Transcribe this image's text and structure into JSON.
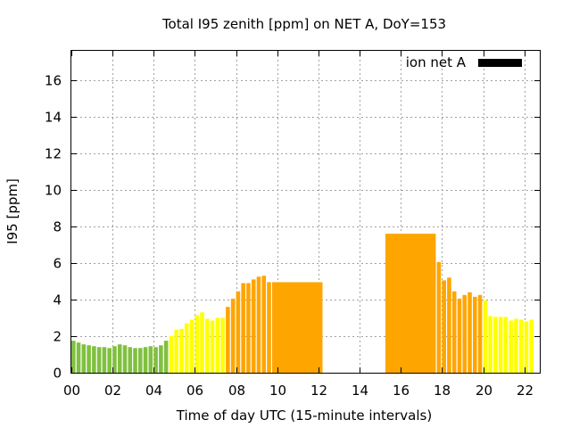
{
  "chart_data": {
    "type": "bar",
    "title": "Total I95 zenith [ppm] on NET A, DoY=153",
    "xlabel": "Time of day UTC (15-minute intervals)",
    "ylabel": "I95 [ppm]",
    "xlim": [
      0,
      22.75
    ],
    "ylim": [
      0,
      17.6
    ],
    "x_ticks": [
      0,
      2,
      4,
      6,
      8,
      10,
      12,
      14,
      16,
      18,
      20,
      22
    ],
    "x_tick_labels": [
      "00",
      "02",
      "04",
      "06",
      "08",
      "10",
      "12",
      "14",
      "16",
      "18",
      "20",
      "22"
    ],
    "y_ticks": [
      0,
      2,
      4,
      6,
      8,
      10,
      12,
      14,
      16
    ],
    "y_tick_labels": [
      "0",
      "2",
      "4",
      "6",
      "8",
      "10",
      "12",
      "14",
      "16"
    ],
    "grid": true,
    "legend": {
      "position": "top-right",
      "entries": [
        {
          "label": "ion net A",
          "color": "#000000"
        }
      ]
    },
    "colors": {
      "green": "#80c040",
      "yellow": "#ffff00",
      "orange": "#ffa500"
    },
    "series": [
      {
        "bars": [
          {
            "x": 0.0,
            "v": 1.75,
            "c": "green"
          },
          {
            "x": 0.25,
            "v": 1.65,
            "c": "green"
          },
          {
            "x": 0.5,
            "v": 1.55,
            "c": "green"
          },
          {
            "x": 0.75,
            "v": 1.5,
            "c": "green"
          },
          {
            "x": 1.0,
            "v": 1.45,
            "c": "green"
          },
          {
            "x": 1.25,
            "v": 1.4,
            "c": "green"
          },
          {
            "x": 1.5,
            "v": 1.4,
            "c": "green"
          },
          {
            "x": 1.75,
            "v": 1.35,
            "c": "green"
          },
          {
            "x": 2.0,
            "v": 1.45,
            "c": "green"
          },
          {
            "x": 2.25,
            "v": 1.55,
            "c": "green"
          },
          {
            "x": 2.5,
            "v": 1.5,
            "c": "green"
          },
          {
            "x": 2.75,
            "v": 1.4,
            "c": "green"
          },
          {
            "x": 3.0,
            "v": 1.35,
            "c": "green"
          },
          {
            "x": 3.25,
            "v": 1.35,
            "c": "green"
          },
          {
            "x": 3.5,
            "v": 1.4,
            "c": "green"
          },
          {
            "x": 3.75,
            "v": 1.45,
            "c": "green"
          },
          {
            "x": 4.0,
            "v": 1.4,
            "c": "green"
          },
          {
            "x": 4.25,
            "v": 1.5,
            "c": "green"
          },
          {
            "x": 4.5,
            "v": 1.75,
            "c": "green"
          },
          {
            "x": 4.75,
            "v": 2.0,
            "c": "yellow"
          },
          {
            "x": 5.0,
            "v": 2.35,
            "c": "yellow"
          },
          {
            "x": 5.25,
            "v": 2.4,
            "c": "yellow"
          },
          {
            "x": 5.5,
            "v": 2.7,
            "c": "yellow"
          },
          {
            "x": 5.75,
            "v": 2.9,
            "c": "yellow"
          },
          {
            "x": 6.0,
            "v": 3.15,
            "c": "yellow"
          },
          {
            "x": 6.25,
            "v": 3.3,
            "c": "yellow"
          },
          {
            "x": 6.5,
            "v": 2.95,
            "c": "yellow"
          },
          {
            "x": 6.75,
            "v": 2.85,
            "c": "yellow"
          },
          {
            "x": 7.0,
            "v": 3.0,
            "c": "yellow"
          },
          {
            "x": 7.25,
            "v": 3.0,
            "c": "yellow"
          },
          {
            "x": 7.5,
            "v": 3.6,
            "c": "orange"
          },
          {
            "x": 7.75,
            "v": 4.05,
            "c": "orange"
          },
          {
            "x": 8.0,
            "v": 4.45,
            "c": "orange"
          },
          {
            "x": 8.25,
            "v": 4.9,
            "c": "orange"
          },
          {
            "x": 8.5,
            "v": 4.9,
            "c": "orange"
          },
          {
            "x": 8.75,
            "v": 5.1,
            "c": "orange"
          },
          {
            "x": 9.0,
            "v": 5.25,
            "c": "orange"
          },
          {
            "x": 9.25,
            "v": 5.3,
            "c": "orange"
          },
          {
            "x": 9.5,
            "v": 4.95,
            "c": "orange"
          },
          {
            "x": 9.75,
            "v": 4.95,
            "c": "orange",
            "w": 2.5
          },
          {
            "x": 15.25,
            "v": 7.6,
            "c": "orange",
            "w": 2.5
          },
          {
            "x": 17.75,
            "v": 6.05,
            "c": "orange"
          },
          {
            "x": 18.0,
            "v": 5.05,
            "c": "orange"
          },
          {
            "x": 18.25,
            "v": 5.2,
            "c": "orange"
          },
          {
            "x": 18.5,
            "v": 4.45,
            "c": "orange"
          },
          {
            "x": 18.75,
            "v": 4.05,
            "c": "orange"
          },
          {
            "x": 19.0,
            "v": 4.25,
            "c": "orange"
          },
          {
            "x": 19.25,
            "v": 4.4,
            "c": "orange"
          },
          {
            "x": 19.5,
            "v": 4.15,
            "c": "orange"
          },
          {
            "x": 19.75,
            "v": 4.25,
            "c": "orange"
          },
          {
            "x": 20.0,
            "v": 3.95,
            "c": "yellow"
          },
          {
            "x": 20.25,
            "v": 3.1,
            "c": "yellow"
          },
          {
            "x": 20.5,
            "v": 3.05,
            "c": "yellow"
          },
          {
            "x": 20.75,
            "v": 3.05,
            "c": "yellow"
          },
          {
            "x": 21.0,
            "v": 3.05,
            "c": "yellow"
          },
          {
            "x": 21.25,
            "v": 2.85,
            "c": "yellow"
          },
          {
            "x": 21.5,
            "v": 2.95,
            "c": "yellow"
          },
          {
            "x": 21.75,
            "v": 2.9,
            "c": "yellow"
          },
          {
            "x": 22.0,
            "v": 2.8,
            "c": "yellow"
          },
          {
            "x": 22.25,
            "v": 2.9,
            "c": "yellow"
          }
        ]
      }
    ]
  }
}
